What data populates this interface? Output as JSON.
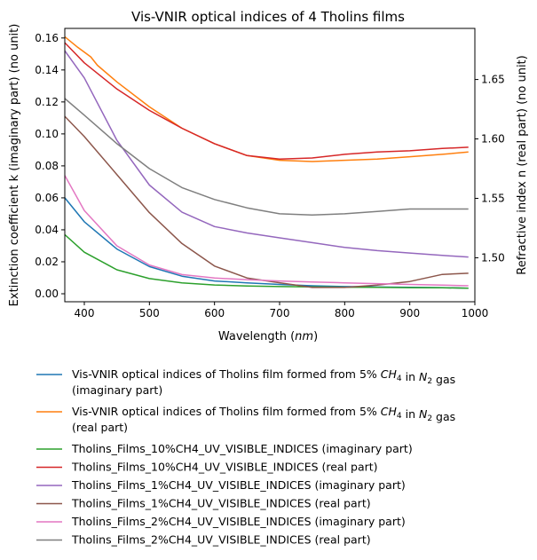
{
  "chart_data": {
    "type": "line",
    "title": "Vis-VNIR optical indices of 4 Tholins films",
    "xlabel": "Wavelength (nm)",
    "ylabel_left": "Extinction coefficient k (imaginary part) (no unit)",
    "ylabel_right": "Refractive index n (real part) (no unit)",
    "xlim": [
      370,
      1000
    ],
    "ylim_left": [
      -0.005,
      0.166
    ],
    "ylim_right": [
      1.463,
      1.693
    ],
    "x_ticks": [
      "400",
      "500",
      "600",
      "700",
      "800",
      "900",
      "1000"
    ],
    "y_left_ticks": [
      "0.00",
      "0.02",
      "0.04",
      "0.06",
      "0.08",
      "0.10",
      "0.12",
      "0.14",
      "0.16"
    ],
    "y_right_ticks": [
      "1.50",
      "1.55",
      "1.60",
      "1.65"
    ],
    "grid": false,
    "legend_position": "below",
    "series": [
      {
        "name": "Vis-VNIR optical indices of Tholins film formed from 5% CH4 in N2 gas (imaginary part)",
        "legend_line1": "Vis-VNIR optical indices of Tholins film formed from 5% CH4 in N2 gas",
        "legend_line2": "(imaginary part)",
        "axis": "left",
        "color": "#1f77b4",
        "x": [
          370,
          400,
          450,
          500,
          550,
          600,
          650,
          700,
          750,
          800,
          850,
          900,
          950,
          990
        ],
        "y": [
          0.06,
          0.045,
          0.028,
          0.017,
          0.011,
          0.008,
          0.0068,
          0.0058,
          0.005,
          0.0045,
          0.0042,
          0.004,
          0.0038,
          0.0035
        ]
      },
      {
        "name": "Vis-VNIR optical indices of Tholins film formed from 5% CH4 in N2 gas (real part)",
        "legend_line1": "Vis-VNIR optical indices of Tholins film formed from 5% CH4 in N2 gas",
        "legend_line2": "(real part)",
        "axis": "right",
        "color": "#ff7f0e",
        "x": [
          370,
          390,
          410,
          420,
          450,
          500,
          550,
          600,
          650,
          700,
          750,
          800,
          850,
          900,
          950,
          990
        ],
        "y": [
          1.686,
          1.677,
          1.669,
          1.662,
          1.648,
          1.627,
          1.609,
          1.596,
          1.586,
          1.582,
          1.581,
          1.582,
          1.583,
          1.585,
          1.587,
          1.589
        ]
      },
      {
        "name": "Tholins_Films_10%CH4_UV_VISIBLE_INDICES (imaginary part)",
        "axis": "left",
        "color": "#2ca02c",
        "x": [
          370,
          400,
          450,
          500,
          550,
          600,
          650,
          700,
          750,
          800,
          850,
          900,
          950,
          990
        ],
        "y": [
          0.037,
          0.026,
          0.015,
          0.0095,
          0.0068,
          0.0055,
          0.0049,
          0.0045,
          0.0043,
          0.0041,
          0.004,
          0.0038,
          0.0037,
          0.0035
        ]
      },
      {
        "name": "Tholins_Films_10%CH4_UV_VISIBLE_INDICES (real part)",
        "axis": "right",
        "color": "#d62728",
        "x": [
          370,
          400,
          450,
          500,
          550,
          600,
          650,
          700,
          750,
          800,
          850,
          900,
          950,
          990
        ],
        "y": [
          1.681,
          1.664,
          1.642,
          1.624,
          1.609,
          1.596,
          1.586,
          1.583,
          1.584,
          1.587,
          1.589,
          1.59,
          1.592,
          1.593
        ]
      },
      {
        "name": "Tholins_Films_1%CH4_UV_VISIBLE_INDICES (imaginary part)",
        "axis": "left",
        "color": "#9467bd",
        "x": [
          370,
          400,
          450,
          500,
          550,
          600,
          650,
          700,
          750,
          800,
          850,
          900,
          950,
          990
        ],
        "y": [
          0.152,
          0.135,
          0.096,
          0.068,
          0.051,
          0.042,
          0.038,
          0.035,
          0.032,
          0.029,
          0.027,
          0.0255,
          0.024,
          0.023
        ]
      },
      {
        "name": "Tholins_Films_1%CH4_UV_VISIBLE_INDICES (real part)",
        "axis": "right",
        "color": "#8c564b",
        "x": [
          370,
          400,
          450,
          500,
          550,
          600,
          650,
          700,
          750,
          800,
          850,
          900,
          950,
          990
        ],
        "y": [
          1.619,
          1.602,
          1.57,
          1.538,
          1.512,
          1.493,
          1.483,
          1.479,
          1.475,
          1.475,
          1.477,
          1.48,
          1.486,
          1.487
        ]
      },
      {
        "name": "Tholins_Films_2%CH4_UV_VISIBLE_INDICES (imaginary part)",
        "axis": "left",
        "color": "#e377c2",
        "x": [
          370,
          400,
          450,
          500,
          550,
          600,
          650,
          700,
          750,
          800,
          850,
          900,
          950,
          990
        ],
        "y": [
          0.074,
          0.052,
          0.03,
          0.018,
          0.012,
          0.0098,
          0.0088,
          0.008,
          0.0074,
          0.0068,
          0.0063,
          0.0058,
          0.0054,
          0.005
        ]
      },
      {
        "name": "Tholins_Films_2%CH4_UV_VISIBLE_INDICES (real part)",
        "axis": "right",
        "color": "#7f7f7f",
        "x": [
          370,
          400,
          450,
          500,
          550,
          600,
          650,
          700,
          750,
          800,
          850,
          900,
          950,
          990
        ],
        "y": [
          1.634,
          1.62,
          1.596,
          1.575,
          1.559,
          1.549,
          1.542,
          1.537,
          1.536,
          1.537,
          1.539,
          1.541,
          1.541,
          1.541
        ]
      }
    ]
  }
}
